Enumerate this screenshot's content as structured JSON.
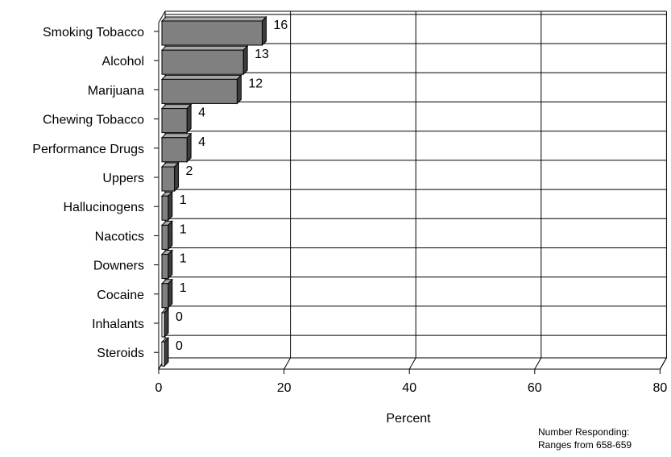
{
  "chart_data": {
    "type": "bar",
    "orientation": "horizontal",
    "style": "3d",
    "categories": [
      "Smoking Tobacco",
      "Alcohol",
      "Marijuana",
      "Chewing Tobacco",
      "Performance Drugs",
      "Uppers",
      "Hallucinogens",
      "Nacotics",
      "Downers",
      "Cocaine",
      "Inhalants",
      "Steroids"
    ],
    "values": [
      16,
      13,
      12,
      4,
      4,
      2,
      1,
      1,
      1,
      1,
      0,
      0
    ],
    "data_labels": [
      "16",
      "13",
      "12",
      "4",
      "4",
      "2",
      "1",
      "1",
      "1",
      "1",
      "0",
      "0"
    ],
    "x_ticks": [
      "0",
      "20",
      "40",
      "60",
      "80"
    ],
    "xlabel": "Percent",
    "ylabel": "",
    "xlim": [
      0,
      80
    ],
    "grid": true,
    "colors": {
      "bar_front": "#808080",
      "bar_top": "#a8a8a8",
      "bar_side": "#3c3c3c",
      "grid": "#000000"
    }
  },
  "notes": {
    "line1": "Number Responding:",
    "line2": "Ranges from 658-659"
  }
}
